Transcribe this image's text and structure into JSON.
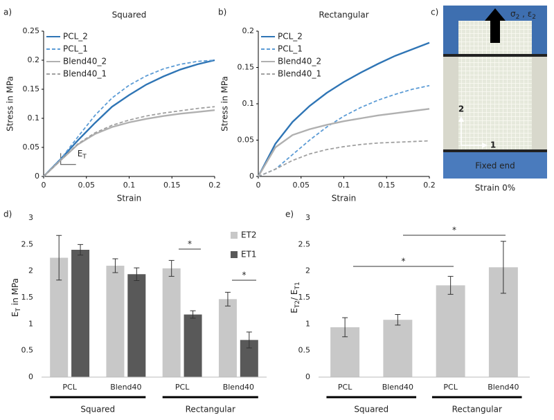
{
  "chart_data": [
    {
      "type": "line",
      "panel_label": "a)",
      "title": "Squared",
      "xlabel": "Strain",
      "ylabel": "Stress in MPa",
      "annotation": [
        "E",
        "T"
      ],
      "x": [
        0,
        0.02,
        0.04,
        0.06,
        0.08,
        0.1,
        0.12,
        0.14,
        0.16,
        0.18,
        0.2
      ],
      "series": [
        {
          "name": "PCL_2",
          "color": "#2f75b5",
          "dash": false,
          "values": [
            0,
            0.03,
            0.062,
            0.092,
            0.12,
            0.14,
            0.158,
            0.172,
            0.184,
            0.193,
            0.2
          ]
        },
        {
          "name": "PCL_1",
          "color": "#5b9bd5",
          "dash": true,
          "values": [
            0,
            0.03,
            0.068,
            0.105,
            0.135,
            0.157,
            0.173,
            0.185,
            0.193,
            0.198,
            0.2
          ]
        },
        {
          "name": "Blend40_2",
          "color": "#b0b0b0",
          "dash": false,
          "values": [
            0,
            0.028,
            0.055,
            0.073,
            0.085,
            0.093,
            0.099,
            0.104,
            0.108,
            0.111,
            0.114
          ]
        },
        {
          "name": "Blend40_1",
          "color": "#a0a0a0",
          "dash": true,
          "values": [
            0,
            0.028,
            0.056,
            0.075,
            0.088,
            0.097,
            0.104,
            0.109,
            0.113,
            0.117,
            0.12
          ]
        }
      ],
      "xlim": [
        0,
        0.2
      ],
      "xticks": [
        0,
        0.05,
        0.1,
        0.15,
        0.2
      ],
      "ylim": [
        0,
        0.25
      ],
      "yticks": [
        0,
        0.05,
        0.1,
        0.15,
        0.2,
        0.25
      ]
    },
    {
      "type": "line",
      "panel_label": "b)",
      "title": "Rectangular",
      "xlabel": "Strain",
      "ylabel": "Stress in MPa",
      "x": [
        0,
        0.02,
        0.04,
        0.06,
        0.08,
        0.1,
        0.12,
        0.14,
        0.16,
        0.18,
        0.2
      ],
      "series": [
        {
          "name": "PCL_2",
          "color": "#2f75b5",
          "dash": false,
          "values": [
            0,
            0.045,
            0.075,
            0.097,
            0.115,
            0.13,
            0.143,
            0.155,
            0.166,
            0.175,
            0.184
          ]
        },
        {
          "name": "PCL_1",
          "color": "#5b9bd5",
          "dash": true,
          "values": [
            0,
            0.01,
            0.03,
            0.05,
            0.068,
            0.083,
            0.095,
            0.105,
            0.113,
            0.12,
            0.125
          ]
        },
        {
          "name": "Blend40_2",
          "color": "#b0b0b0",
          "dash": false,
          "values": [
            0,
            0.04,
            0.057,
            0.065,
            0.071,
            0.076,
            0.08,
            0.084,
            0.087,
            0.09,
            0.093
          ]
        },
        {
          "name": "Blend40_1",
          "color": "#a0a0a0",
          "dash": true,
          "values": [
            0,
            0.01,
            0.022,
            0.031,
            0.037,
            0.041,
            0.044,
            0.046,
            0.047,
            0.048,
            0.049
          ]
        }
      ],
      "xlim": [
        0,
        0.2
      ],
      "xticks": [
        0,
        0.05,
        0.1,
        0.15,
        0.2
      ],
      "ylim": [
        0,
        0.2
      ],
      "yticks": [
        0,
        0.05,
        0.1,
        0.15,
        0.2
      ]
    },
    {
      "type": "bar",
      "panel_label": "d)",
      "ylabel_parts": [
        "E",
        "T",
        " in MPa"
      ],
      "categories": [
        "PCL",
        "Blend40",
        "PCL",
        "Blend40"
      ],
      "groups": [
        "Squared",
        "Rectangular"
      ],
      "series": [
        {
          "name": "ET2",
          "color": "#c8c8c8",
          "values": [
            2.25,
            2.1,
            2.05,
            1.47
          ],
          "errors": [
            0.42,
            0.13,
            0.15,
            0.13
          ]
        },
        {
          "name": "ET1",
          "color": "#595959",
          "values": [
            2.4,
            1.94,
            1.18,
            0.7
          ],
          "errors": [
            0.1,
            0.12,
            0.07,
            0.15
          ]
        }
      ],
      "annotations": [
        "*",
        "*"
      ],
      "ylim": [
        0,
        3
      ],
      "yticks": [
        0,
        0.5,
        1,
        1.5,
        2,
        2.5,
        3
      ]
    },
    {
      "type": "bar",
      "panel_label": "e)",
      "ylabel_parts": [
        "E",
        "T2",
        "/ E",
        "T1"
      ],
      "categories": [
        "PCL",
        "Blend40",
        "PCL",
        "Blend40"
      ],
      "groups": [
        "Squared",
        "Rectangular"
      ],
      "series": [
        {
          "color": "#c8c8c8",
          "values": [
            0.94,
            1.08,
            1.73,
            2.07
          ],
          "errors": [
            0.18,
            0.1,
            0.17,
            0.49
          ]
        }
      ],
      "annotations": [
        "*",
        "*"
      ],
      "ylim": [
        0,
        3
      ],
      "yticks": [
        0,
        0.5,
        1,
        1.5,
        2,
        2.5,
        3
      ]
    }
  ],
  "photo": {
    "panel_label": "c)",
    "arrow_label": [
      "σ",
      "2",
      " , ε",
      "2"
    ],
    "axis_2": "2",
    "axis_1": "1",
    "fixed_label": "Fixed end",
    "caption": "Strain 0%"
  }
}
